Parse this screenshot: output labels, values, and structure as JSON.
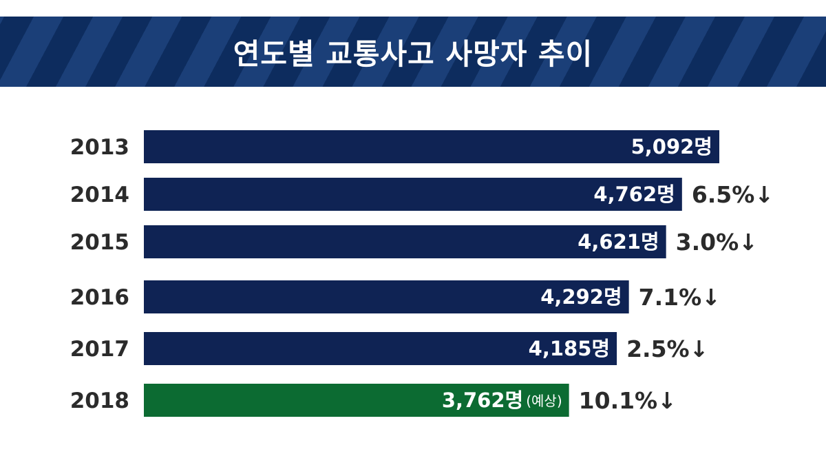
{
  "colors": {
    "bar": "#0f2354",
    "projected_bar": "#0c6b32",
    "banner_dark": "#0d2c5e",
    "banner_light": "#1b3f78",
    "text": "#2b2b2b"
  },
  "chart_data": {
    "type": "bar",
    "orientation": "horizontal",
    "title": "연도별 교통사고 사망자 추이",
    "unit": "명",
    "categories": [
      "2013",
      "2014",
      "2015",
      "2016",
      "2017",
      "2018"
    ],
    "values": [
      5092,
      4762,
      4621,
      4292,
      4185,
      3762
    ],
    "value_labels": [
      "5,092명",
      "4,762명",
      "4,621명",
      "4,292명",
      "4,185명",
      "3,762명"
    ],
    "notes": [
      "",
      "",
      "",
      "",
      "",
      "(예상)"
    ],
    "changes": [
      "",
      "6.5%↓",
      "3.0%↓",
      "7.1%↓",
      "2.5%↓",
      "10.1%↓"
    ],
    "projected": [
      false,
      false,
      false,
      false,
      false,
      true
    ],
    "xlim": [
      0,
      5092
    ],
    "grid": false,
    "legend": "none"
  }
}
